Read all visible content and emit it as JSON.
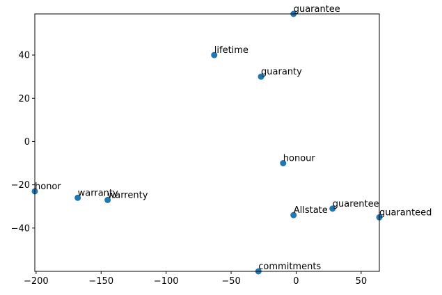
{
  "chart_data": {
    "type": "scatter",
    "title": "",
    "xlabel": "",
    "ylabel": "",
    "xlim": [
      -201,
      64
    ],
    "ylim": [
      -60,
      59
    ],
    "grid": false,
    "marker_color": "#1f77b4",
    "x_ticks": [
      -200,
      -150,
      -100,
      -50,
      0,
      50
    ],
    "y_ticks": [
      -40,
      -20,
      0,
      20,
      40
    ],
    "x_tick_labels": [
      "−200",
      "−150",
      "−100",
      "−50",
      "0",
      "50"
    ],
    "y_tick_labels": [
      "−40",
      "−20",
      "0",
      "20",
      "40"
    ],
    "points": [
      {
        "label": "guarantee",
        "x": -2,
        "y": 59
      },
      {
        "label": "lifetime",
        "x": -63,
        "y": 40
      },
      {
        "label": "guaranty",
        "x": -27,
        "y": 30
      },
      {
        "label": "honour",
        "x": -10,
        "y": -10
      },
      {
        "label": "honor",
        "x": -201,
        "y": -23
      },
      {
        "label": "warranty",
        "x": -168,
        "y": -26
      },
      {
        "label": "warrenty",
        "x": -145,
        "y": -27
      },
      {
        "label": "guarentee",
        "x": 28,
        "y": -31
      },
      {
        "label": "Allstate",
        "x": -2,
        "y": -34
      },
      {
        "label": "guaranteed",
        "x": 64,
        "y": -35
      },
      {
        "label": "commitments",
        "x": -29,
        "y": -60
      }
    ]
  }
}
